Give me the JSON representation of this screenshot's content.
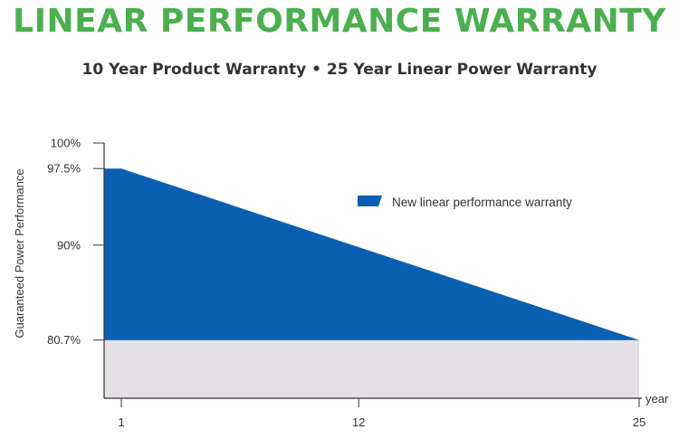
{
  "header": {
    "title": "LINEAR PERFORMANCE WARRANTY",
    "subtitle": "10 Year Product Warranty • 25 Year Linear Power Warranty"
  },
  "colors": {
    "title": "#4caf50",
    "series": "#0a5fb0",
    "baseline_band": "#e3e1e4",
    "axis": "#333333"
  },
  "chart_data": {
    "type": "area",
    "title": "",
    "xlabel": "year",
    "ylabel": "Guaranteed Power Performance",
    "x_ticks": [
      "1",
      "12",
      "25"
    ],
    "y_ticks": [
      "100%",
      "97.5%",
      "90%",
      "80.7%"
    ],
    "xlim": [
      0.2,
      25
    ],
    "ylim": [
      75,
      100
    ],
    "baseline_band": {
      "from": 75,
      "to": 80.7
    },
    "legend": "top-right",
    "grid": false,
    "series": [
      {
        "name": "New linear performance warranty",
        "x": [
          0.2,
          1,
          25
        ],
        "y": [
          97.5,
          97.5,
          80.7
        ]
      }
    ]
  }
}
